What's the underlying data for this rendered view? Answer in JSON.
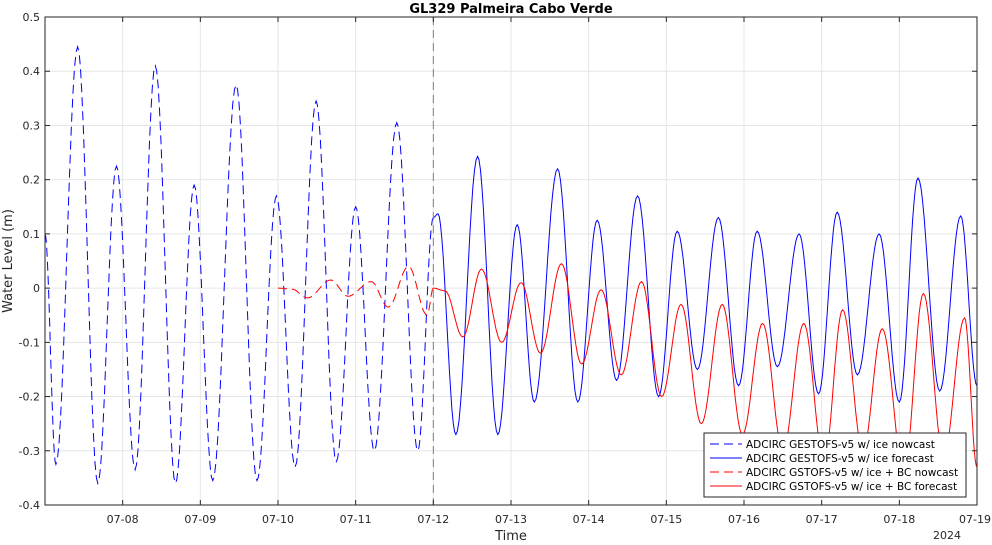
{
  "chart_data": {
    "type": "line",
    "title": "GL329 Palmeira Cabo Verde",
    "xlabel": "Time",
    "ylabel": "Water Level (m)",
    "year_label": "2024",
    "x_unit": "day of July 2024",
    "xlim": [
      7.0,
      19.0
    ],
    "ylim": [
      -0.4,
      0.5
    ],
    "y_ticks": [
      -0.4,
      -0.3,
      -0.2,
      -0.1,
      0,
      0.1,
      0.2,
      0.3,
      0.4,
      0.5
    ],
    "y_tick_labels": [
      "-0.4",
      "-0.3",
      "-0.2",
      "-0.1",
      "0",
      "0.1",
      "0.2",
      "0.3",
      "0.4",
      "0.5"
    ],
    "x_ticks": [
      8,
      9,
      10,
      11,
      12,
      13,
      14,
      15,
      16,
      17,
      18,
      19
    ],
    "x_tick_labels": [
      "07-08",
      "07-09",
      "07-10",
      "07-11",
      "07-12",
      "07-13",
      "07-14",
      "07-15",
      "07-16",
      "07-17",
      "07-18",
      "07-19"
    ],
    "grid": true,
    "nowcast_forecast_divider_x": 12.0,
    "legend_position": "bottom-right",
    "colors": {
      "gestofs": "#0000ff",
      "gstofs_bc": "#ff0000",
      "divider": "#808080"
    },
    "series": [
      {
        "name": "ADCIRC GESTOFS-v5 w/ ice nowcast",
        "color": "#0000ff",
        "dash": true,
        "extrema": [
          [
            7.0,
            0.1
          ],
          [
            7.14,
            -0.325
          ],
          [
            7.42,
            0.445
          ],
          [
            7.68,
            -0.36
          ],
          [
            7.92,
            0.225
          ],
          [
            8.16,
            -0.335
          ],
          [
            8.42,
            0.41
          ],
          [
            8.68,
            -0.36
          ],
          [
            8.92,
            0.19
          ],
          [
            9.16,
            -0.355
          ],
          [
            9.46,
            0.375
          ],
          [
            9.73,
            -0.355
          ],
          [
            9.98,
            0.17
          ],
          [
            10.22,
            -0.33
          ],
          [
            10.49,
            0.345
          ],
          [
            10.75,
            -0.32
          ],
          [
            11.0,
            0.15
          ],
          [
            11.24,
            -0.3
          ],
          [
            11.53,
            0.305
          ],
          [
            11.8,
            -0.3
          ],
          [
            12.0,
            0.13
          ]
        ]
      },
      {
        "name": "ADCIRC GESTOFS-v5 w/ ice forecast",
        "color": "#0000ff",
        "dash": false,
        "extrema": [
          [
            12.0,
            0.13
          ],
          [
            12.06,
            0.137
          ],
          [
            12.29,
            -0.27
          ],
          [
            12.57,
            0.243
          ],
          [
            12.83,
            -0.27
          ],
          [
            13.08,
            0.117
          ],
          [
            13.3,
            -0.21
          ],
          [
            13.6,
            0.22
          ],
          [
            13.86,
            -0.21
          ],
          [
            14.11,
            0.125
          ],
          [
            14.36,
            -0.17
          ],
          [
            14.63,
            0.17
          ],
          [
            14.9,
            -0.2
          ],
          [
            15.14,
            0.105
          ],
          [
            15.4,
            -0.15
          ],
          [
            15.67,
            0.13
          ],
          [
            15.93,
            -0.18
          ],
          [
            16.17,
            0.105
          ],
          [
            16.43,
            -0.145
          ],
          [
            16.71,
            0.1
          ],
          [
            16.96,
            -0.195
          ],
          [
            17.2,
            0.14
          ],
          [
            17.46,
            -0.16
          ],
          [
            17.74,
            0.1
          ],
          [
            18.0,
            -0.21
          ],
          [
            18.24,
            0.203
          ],
          [
            18.52,
            -0.19
          ],
          [
            18.79,
            0.133
          ],
          [
            19.0,
            -0.18
          ]
        ]
      },
      {
        "name": "ADCIRC GSTOFS-v5 w/ ice + BC nowcast",
        "color": "#ff0000",
        "dash": true,
        "extrema": [
          [
            10.0,
            0.0
          ],
          [
            10.18,
            -0.002
          ],
          [
            10.38,
            -0.018
          ],
          [
            10.68,
            0.015
          ],
          [
            10.9,
            -0.015
          ],
          [
            11.2,
            0.012
          ],
          [
            11.42,
            -0.035
          ],
          [
            11.68,
            0.04
          ],
          [
            11.92,
            -0.05
          ],
          [
            12.0,
            0.0
          ]
        ]
      },
      {
        "name": "ADCIRC GSTOFS-v5 w/ ice + BC forecast",
        "color": "#ff0000",
        "dash": false,
        "extrema": [
          [
            12.0,
            0.0
          ],
          [
            12.15,
            -0.005
          ],
          [
            12.38,
            -0.09
          ],
          [
            12.62,
            0.035
          ],
          [
            12.88,
            -0.1
          ],
          [
            13.13,
            0.01
          ],
          [
            13.38,
            -0.12
          ],
          [
            13.65,
            0.045
          ],
          [
            13.91,
            -0.14
          ],
          [
            14.16,
            -0.003
          ],
          [
            14.42,
            -0.16
          ],
          [
            14.68,
            0.012
          ],
          [
            14.94,
            -0.2
          ],
          [
            15.19,
            -0.03
          ],
          [
            15.45,
            -0.25
          ],
          [
            15.72,
            -0.03
          ],
          [
            15.98,
            -0.27
          ],
          [
            16.24,
            -0.065
          ],
          [
            16.5,
            -0.3
          ],
          [
            16.77,
            -0.065
          ],
          [
            17.03,
            -0.32
          ],
          [
            17.27,
            -0.04
          ],
          [
            17.53,
            -0.3
          ],
          [
            17.78,
            -0.075
          ],
          [
            18.06,
            -0.34
          ],
          [
            18.31,
            -0.01
          ],
          [
            18.57,
            -0.31
          ],
          [
            18.84,
            -0.055
          ],
          [
            19.0,
            -0.33
          ]
        ]
      }
    ]
  }
}
